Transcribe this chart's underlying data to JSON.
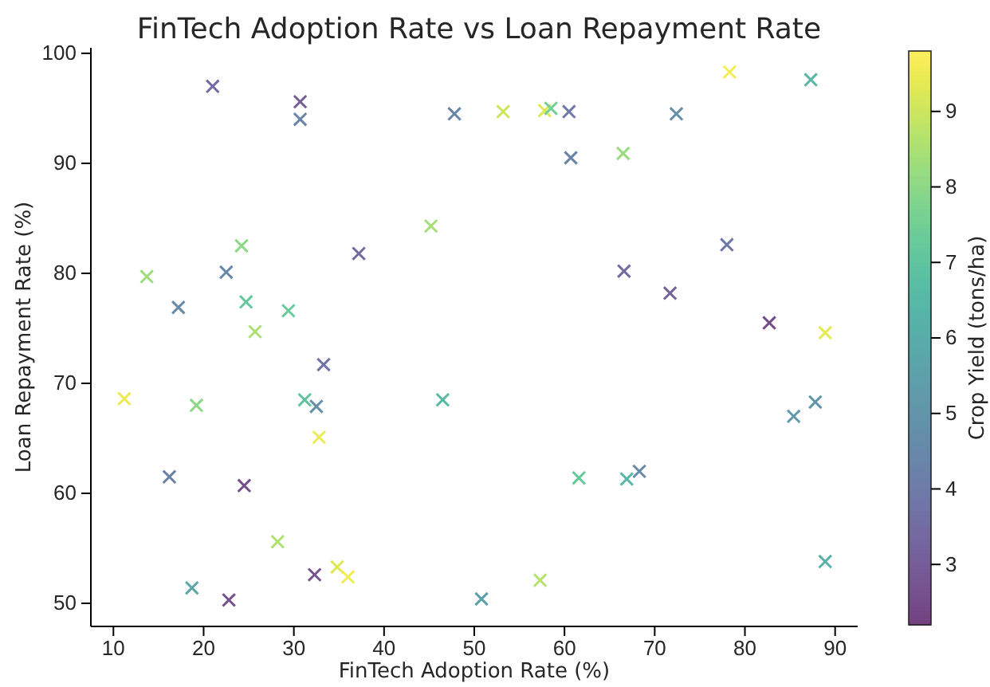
{
  "chart_data": {
    "type": "scatter",
    "title": "FinTech Adoption Rate vs Loan Repayment Rate",
    "xlabel": "FinTech Adoption Rate (%)",
    "ylabel": "Loan Repayment Rate (%)",
    "clabel": "Crop Yield (tons/ha)",
    "x": [
      21.0,
      30.7,
      30.7,
      24.2,
      37.2,
      13.7,
      22.5,
      17.2,
      24.7,
      29.4,
      25.7,
      33.3,
      11.2,
      19.2,
      31.2,
      32.5,
      32.8,
      16.2,
      24.5,
      28.2,
      34.8,
      32.3,
      36.0,
      18.7,
      22.8,
      47.8,
      53.2,
      57.8,
      58.5,
      60.5,
      60.7,
      66.5,
      45.2,
      66.6,
      46.5,
      61.6,
      66.9,
      57.3,
      50.8,
      78.3,
      87.3,
      72.4,
      78.0,
      71.7,
      82.7,
      88.9,
      87.8,
      85.4,
      68.3,
      88.9
    ],
    "values": [
      97.0,
      95.6,
      94.0,
      82.5,
      81.8,
      79.7,
      80.1,
      76.9,
      77.4,
      76.6,
      74.7,
      71.7,
      68.6,
      68.0,
      68.5,
      67.9,
      65.1,
      61.5,
      60.7,
      55.6,
      53.3,
      52.6,
      52.4,
      51.4,
      50.3,
      94.5,
      94.7,
      94.8,
      95.0,
      94.7,
      90.5,
      90.9,
      84.3,
      80.2,
      68.5,
      61.4,
      61.3,
      52.1,
      50.4,
      98.3,
      97.6,
      94.5,
      82.6,
      78.2,
      75.5,
      74.6,
      68.3,
      67.0,
      62.0,
      53.8
    ],
    "cvalues": [
      3.5,
      3.0,
      4.3,
      8.0,
      3.3,
      8.3,
      4.5,
      4.6,
      7.2,
      7.3,
      8.5,
      3.8,
      9.5,
      8.0,
      7.0,
      4.8,
      9.5,
      4.2,
      2.6,
      8.6,
      9.3,
      2.7,
      9.6,
      5.8,
      2.6,
      4.4,
      9.0,
      9.3,
      7.5,
      4.0,
      4.3,
      8.2,
      8.4,
      3.4,
      6.6,
      7.2,
      6.5,
      8.7,
      5.5,
      9.6,
      6.5,
      4.8,
      3.9,
      3.2,
      2.5,
      9.4,
      5.0,
      5.2,
      4.6,
      6.3
    ],
    "marker": "cross",
    "xlim": [
      7.5,
      92.5
    ],
    "xticks": [
      10,
      20,
      30,
      40,
      50,
      60,
      70,
      80,
      90
    ],
    "ylim": [
      47.9,
      100.5
    ],
    "yticks": [
      50,
      60,
      70,
      80,
      90,
      100
    ],
    "clim": [
      2.2,
      9.8
    ],
    "cticks": [
      3,
      4,
      5,
      6,
      7,
      8,
      9
    ]
  }
}
